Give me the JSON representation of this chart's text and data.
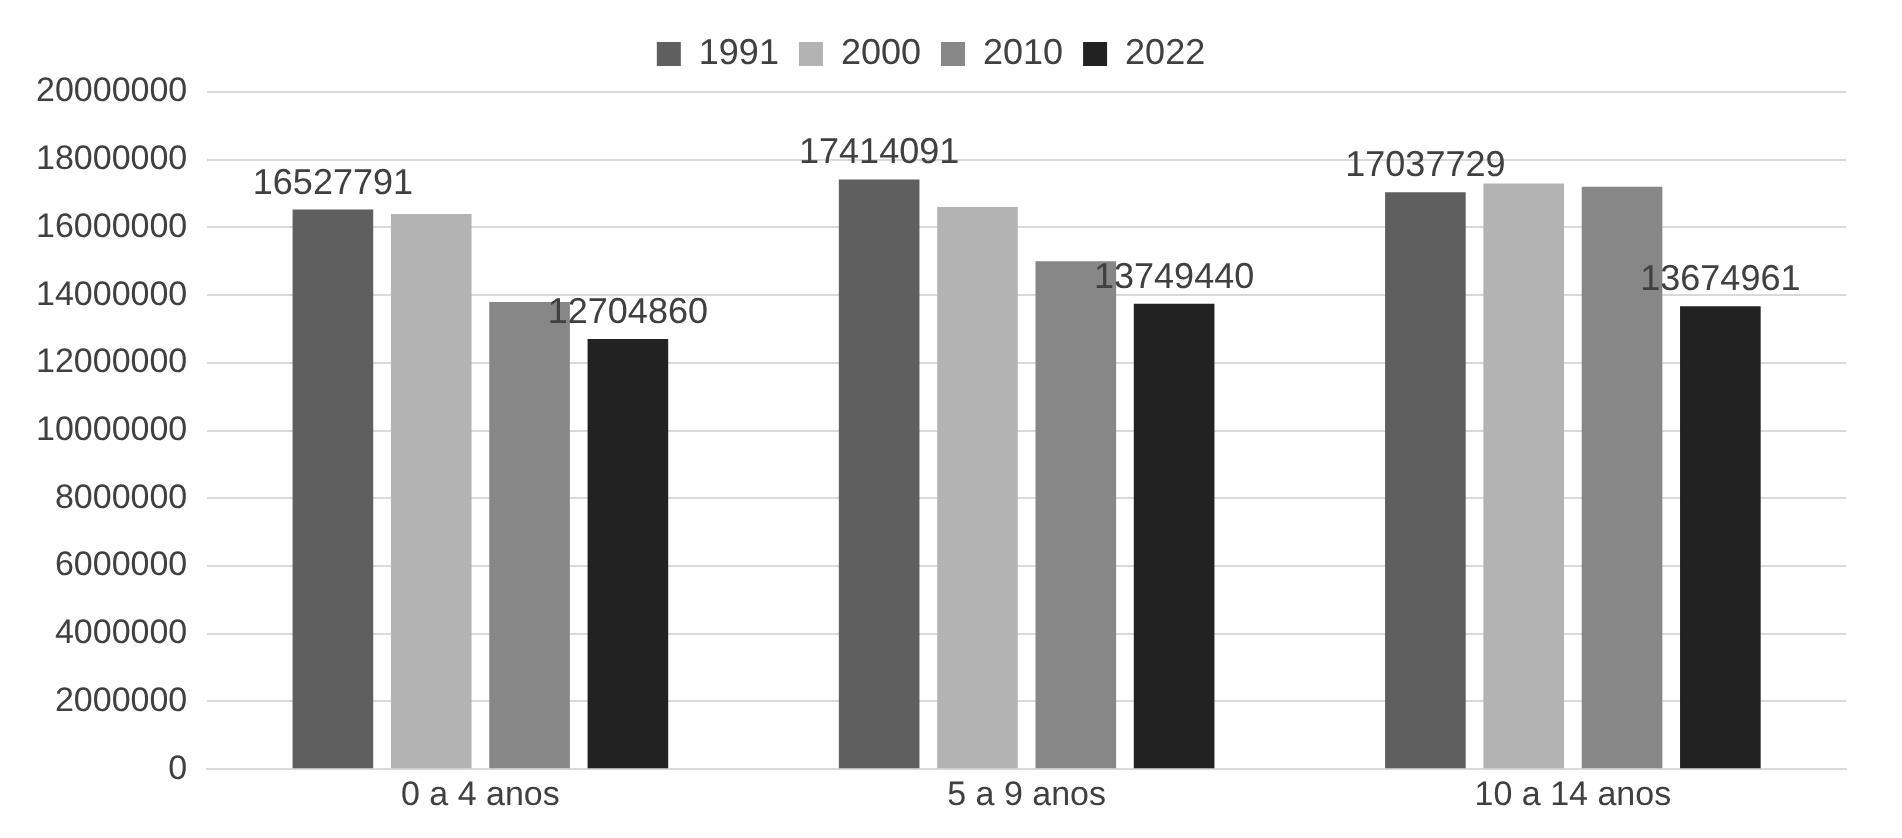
{
  "chart_data": {
    "type": "bar",
    "categories": [
      "0 a 4 anos",
      "5 a 9 anos",
      "10 a 14 anos"
    ],
    "series": [
      {
        "name": "1991",
        "color": "#5f5f5f",
        "values": [
          16527791,
          17414091,
          17037729
        ],
        "value_labels": [
          "16527791",
          "17414091",
          "17037729"
        ]
      },
      {
        "name": "2000",
        "color": "#b3b3b3",
        "values": [
          16400000,
          16600000,
          17300000
        ],
        "value_labels": [
          null,
          null,
          null
        ]
      },
      {
        "name": "2010",
        "color": "#878787",
        "values": [
          13800000,
          15000000,
          17200000
        ],
        "value_labels": [
          null,
          null,
          null
        ]
      },
      {
        "name": "2022",
        "color": "#222222",
        "values": [
          12704860,
          13749440,
          13674961
        ],
        "value_labels": [
          "12704860",
          "13749440",
          "13674961"
        ]
      }
    ],
    "ylim": [
      0,
      20000000
    ],
    "yticks": [
      0,
      2000000,
      4000000,
      6000000,
      8000000,
      10000000,
      12000000,
      14000000,
      16000000,
      18000000,
      20000000
    ],
    "grid": "y",
    "legend": "top"
  }
}
